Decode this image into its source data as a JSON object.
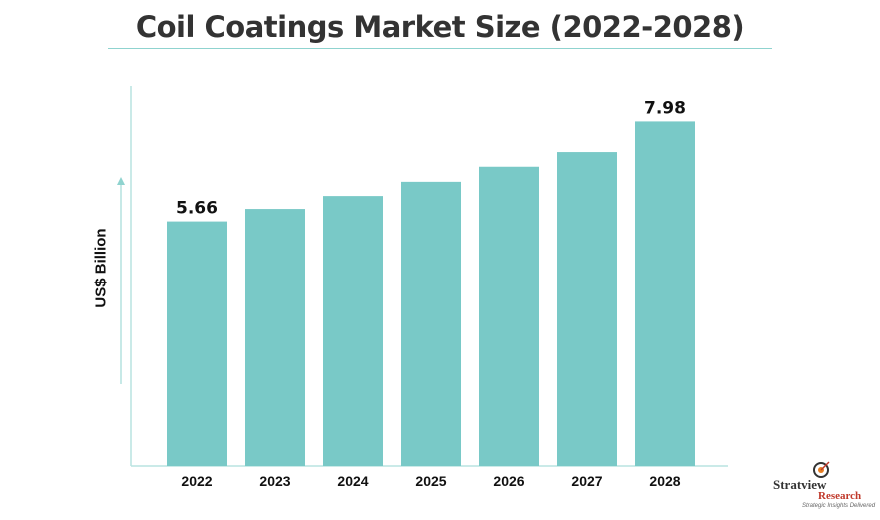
{
  "chart_data": {
    "type": "bar",
    "title": "Coil Coatings Market Size (2022-2028)",
    "ylabel": "US$ Billion",
    "xlabel": "",
    "categories": [
      "2022",
      "2023",
      "2024",
      "2025",
      "2026",
      "2027",
      "2028"
    ],
    "values": [
      5.66,
      5.95,
      6.25,
      6.58,
      6.93,
      7.27,
      7.98
    ],
    "data_labels": [
      {
        "category": "2022",
        "text": "5.66"
      },
      {
        "category": "2028",
        "text": "7.98"
      }
    ],
    "ylim": [
      0,
      8.8
    ],
    "grid": false,
    "bar_color": "#79c9c7",
    "axis_color": "#b9e3e1"
  },
  "logo": {
    "name": "Stratview",
    "sub": "Research",
    "tagline": "Strategic Insights Delivered",
    "colors": {
      "primary": "#333333",
      "accent": "#c0392b",
      "mark": "#e67e22"
    }
  }
}
